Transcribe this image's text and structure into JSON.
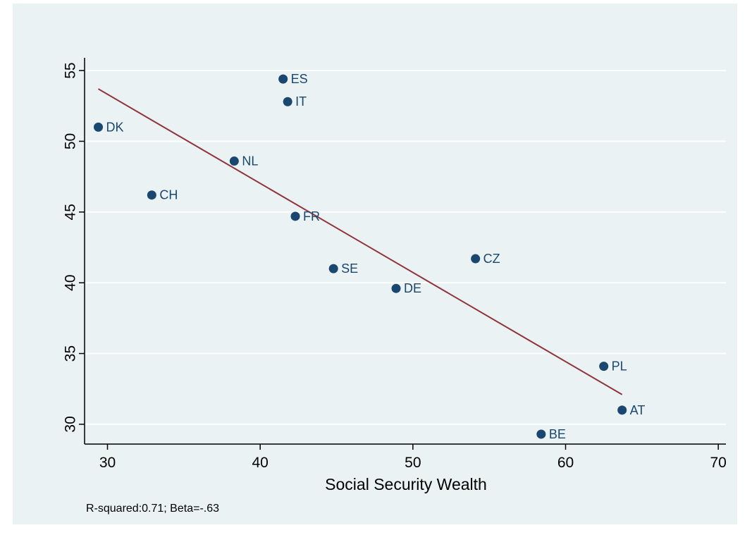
{
  "chart_data": {
    "type": "scatter",
    "xlabel": "Social Security Wealth",
    "ylabel": "",
    "xlim": [
      28.5,
      70.5
    ],
    "ylim": [
      28.6,
      55.9
    ],
    "x_ticks": [
      30,
      40,
      50,
      60,
      70
    ],
    "y_ticks": [
      30,
      35,
      40,
      45,
      50,
      55
    ],
    "grid": "horizontal",
    "points": [
      {
        "label": "ES",
        "x": 41.5,
        "y": 54.4
      },
      {
        "label": "IT",
        "x": 41.8,
        "y": 52.8
      },
      {
        "label": "DK",
        "x": 29.4,
        "y": 51.0
      },
      {
        "label": "NL",
        "x": 38.3,
        "y": 48.6
      },
      {
        "label": "CH",
        "x": 32.9,
        "y": 46.2
      },
      {
        "label": "FR",
        "x": 42.3,
        "y": 44.7
      },
      {
        "label": "CZ",
        "x": 54.1,
        "y": 41.7
      },
      {
        "label": "SE",
        "x": 44.8,
        "y": 41.0
      },
      {
        "label": "DE",
        "x": 48.9,
        "y": 39.6
      },
      {
        "label": "PL",
        "x": 62.5,
        "y": 34.1
      },
      {
        "label": "AT",
        "x": 63.7,
        "y": 31.0
      },
      {
        "label": "BE",
        "x": 58.4,
        "y": 29.3
      }
    ],
    "fit_line": {
      "x": [
        29.4,
        63.7
      ],
      "y": [
        53.7,
        32.1
      ]
    },
    "note": "R-squared:0.71; Beta=-.63",
    "colors": {
      "points": "#1a476f",
      "fit_line": "#90353b",
      "background": "#eaf2f3",
      "grid": "#ffffff",
      "axis": "#000000"
    }
  }
}
